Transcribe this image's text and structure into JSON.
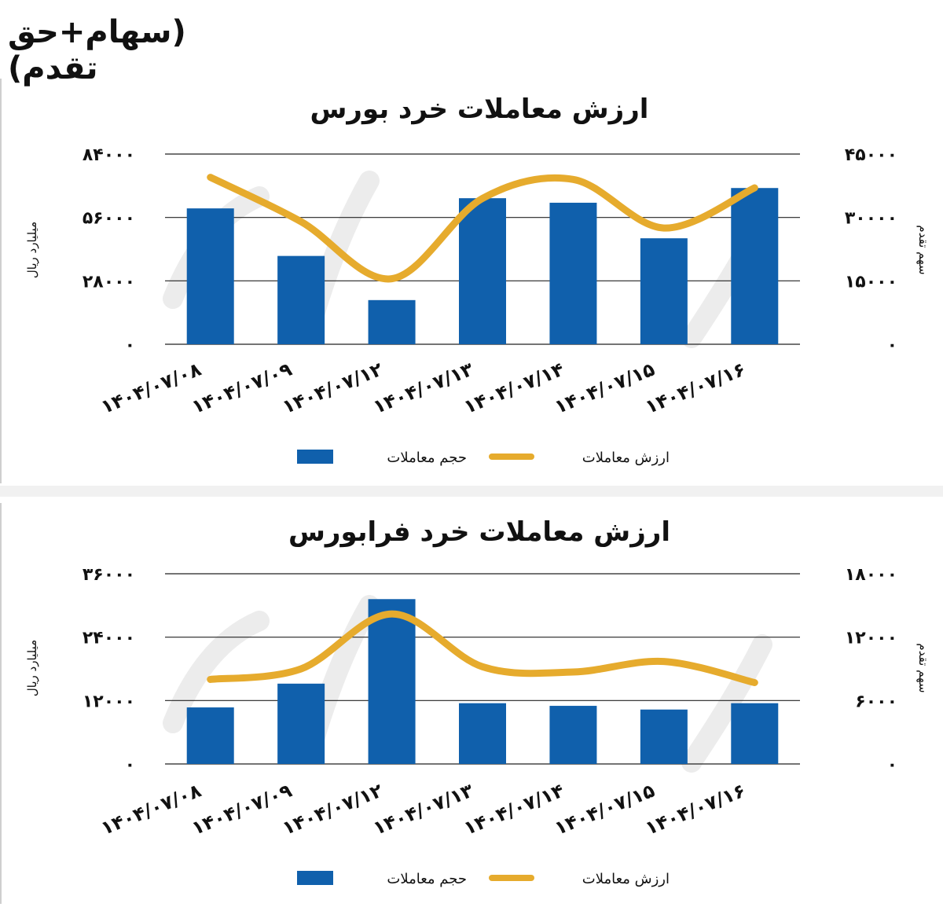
{
  "header": {
    "text": "(سهام+حق تقدم)"
  },
  "colors": {
    "bar": "#1060ac",
    "line": "#e6ab2d",
    "grid": "#222222",
    "watermark": "#ececec"
  },
  "charts": [
    {
      "id": "bourse",
      "chart_data": {
        "type": "bar",
        "title": "ارزش معاملات خرد بورس",
        "ylabel": "میلیارد ریال",
        "y2label": "سهم تقدم",
        "categories": [
          "۱۴۰۴/۰۷/۰۸",
          "۱۴۰۴/۰۷/۰۹",
          "۱۴۰۴/۰۷/۱۲",
          "۱۴۰۴/۰۷/۱۳",
          "۱۴۰۴/۰۷/۱۴",
          "۱۴۰۴/۰۷/۱۵",
          "۱۴۰۴/۰۷/۱۶"
        ],
        "ylim": [
          0,
          84000
        ],
        "y2lim": [
          0,
          45000
        ],
        "y_ticks": [
          "۰",
          "۲۸۰۰۰",
          "۵۶۰۰۰",
          "۸۴۰۰۰"
        ],
        "y2_ticks": [
          "۰",
          "۱۵۰۰۰",
          "۳۰۰۰۰",
          "۴۵۰۰۰"
        ],
        "series": [
          {
            "name": "حجم معاملات",
            "type": "bar",
            "axis": "y",
            "values": [
              60000,
              39000,
              19500,
              64500,
              62500,
              46800,
              69000
            ]
          },
          {
            "name": "ارزش معاملات",
            "type": "line",
            "axis": "y2",
            "values": [
              39500,
              29000,
              15500,
              34500,
              39000,
              27500,
              37000
            ]
          }
        ],
        "legend": "bottom"
      }
    },
    {
      "id": "farabourse",
      "chart_data": {
        "type": "bar",
        "title": "ارزش معاملات خرد فرابورس",
        "ylabel": "میلیارد ریال",
        "y2label": "سهم تقدم",
        "categories": [
          "۱۴۰۴/۰۷/۰۸",
          "۱۴۰۴/۰۷/۰۹",
          "۱۴۰۴/۰۷/۱۲",
          "۱۴۰۴/۰۷/۱۳",
          "۱۴۰۴/۰۷/۱۴",
          "۱۴۰۴/۰۷/۱۵",
          "۱۴۰۴/۰۷/۱۶"
        ],
        "ylim": [
          0,
          36000
        ],
        "y2lim": [
          0,
          18000
        ],
        "y_ticks": [
          "۰",
          "۱۲۰۰۰",
          "۲۴۰۰۰",
          "۳۶۰۰۰"
        ],
        "y2_ticks": [
          "۰",
          "۶۰۰۰",
          "۱۲۰۰۰",
          "۱۸۰۰۰"
        ],
        "series": [
          {
            "name": "حجم معاملات",
            "type": "bar",
            "axis": "y",
            "values": [
              10700,
              15200,
              31200,
              11500,
              11000,
              10300,
              11500
            ]
          },
          {
            "name": "ارزش معاملات",
            "type": "line",
            "axis": "y2",
            "values": [
              8000,
              9000,
              14200,
              9200,
              8700,
              9700,
              7700
            ]
          }
        ],
        "legend": "bottom"
      }
    }
  ]
}
